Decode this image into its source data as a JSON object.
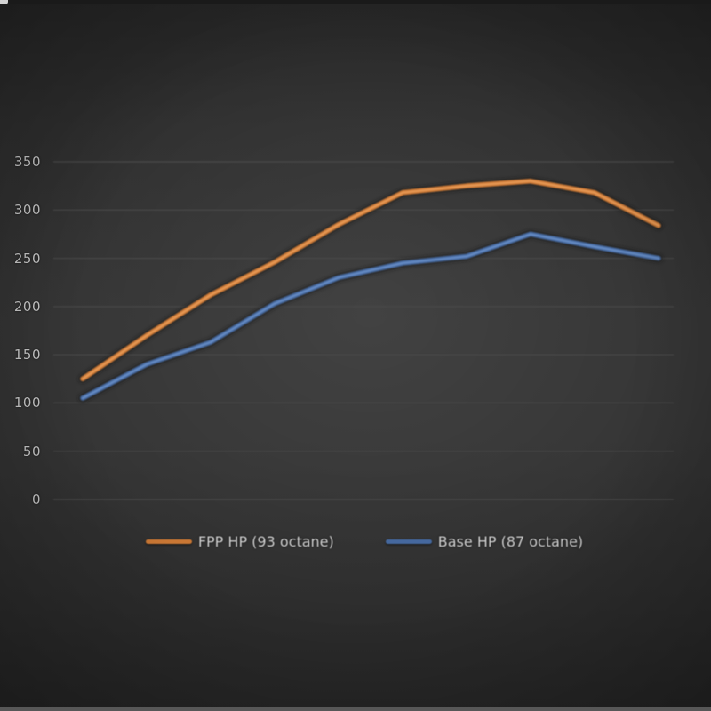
{
  "figure": {
    "description": "Dyno horsepower comparison line chart on dark photographed card",
    "background_center": "#3d3d3d",
    "background_edge": "#1f1f1f"
  },
  "chart_data": {
    "type": "line",
    "title": "",
    "xlabel": "",
    "ylabel": "",
    "x_axis_labels_visible": false,
    "num_points": 10,
    "x": [
      1,
      2,
      3,
      4,
      5,
      6,
      7,
      8,
      9,
      10
    ],
    "ylim": [
      0,
      350
    ],
    "y_tick_step": 50,
    "y_ticks": [
      "350",
      "300",
      "250",
      "200",
      "150",
      "100",
      "50",
      "0"
    ],
    "grid": "horizontal",
    "legend_position": "bottom-center",
    "series": [
      {
        "name": "FPP HP (93 octane)",
        "color": "#c97734",
        "highlight": "#eda05c",
        "values": [
          125,
          170,
          212,
          246,
          285,
          318,
          325,
          330,
          318,
          284
        ]
      },
      {
        "name": "Base HP (87 octane)",
        "color": "#45689e",
        "highlight": "#6c93cc",
        "values": [
          105,
          140,
          163,
          203,
          230,
          245,
          252,
          275,
          262,
          250
        ]
      }
    ]
  }
}
